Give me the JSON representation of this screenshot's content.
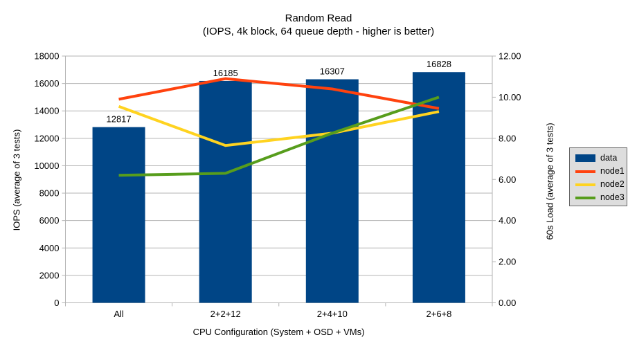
{
  "chart_data": {
    "type": "bar-line-combo",
    "title": "Random Read",
    "subtitle": "(IOPS, 4k block, 64 queue depth - higher is better)",
    "xlabel": "CPU Configuration (System + OSD + VMs)",
    "ylabel_left": "IOPS (average of 3 tests)",
    "ylabel_right": "60s Load (average of 3 tests)",
    "categories": [
      "All",
      "2+2+12",
      "2+4+10",
      "2+6+8"
    ],
    "axis_left": {
      "min": 0,
      "max": 18000,
      "step": 2000
    },
    "axis_right": {
      "min": 0,
      "max": 12,
      "step": 2,
      "decimals": 2
    },
    "grid": "horizontal-only",
    "legend_position": "right",
    "series": [
      {
        "name": "data",
        "type": "bar",
        "axis": "left",
        "color": "#004586",
        "values": [
          12817,
          16185,
          16307,
          16828
        ],
        "value_labels_shown": true
      },
      {
        "name": "node1",
        "type": "line",
        "axis": "right",
        "color": "#FF420E",
        "values": [
          9.9,
          10.9,
          10.4,
          9.45
        ]
      },
      {
        "name": "node2",
        "type": "line",
        "axis": "right",
        "color": "#FFD320",
        "values": [
          9.55,
          7.65,
          8.25,
          9.3
        ]
      },
      {
        "name": "node3",
        "type": "line",
        "axis": "right",
        "color": "#579D1C",
        "values": [
          6.2,
          6.3,
          8.25,
          10.0
        ]
      }
    ],
    "colors": {
      "background": "#ffffff",
      "grid": "#b3b3b3",
      "axis": "#b3b3b3",
      "text": "#000000",
      "legend_bg": "#dddddd",
      "legend_border": "#666666"
    }
  }
}
